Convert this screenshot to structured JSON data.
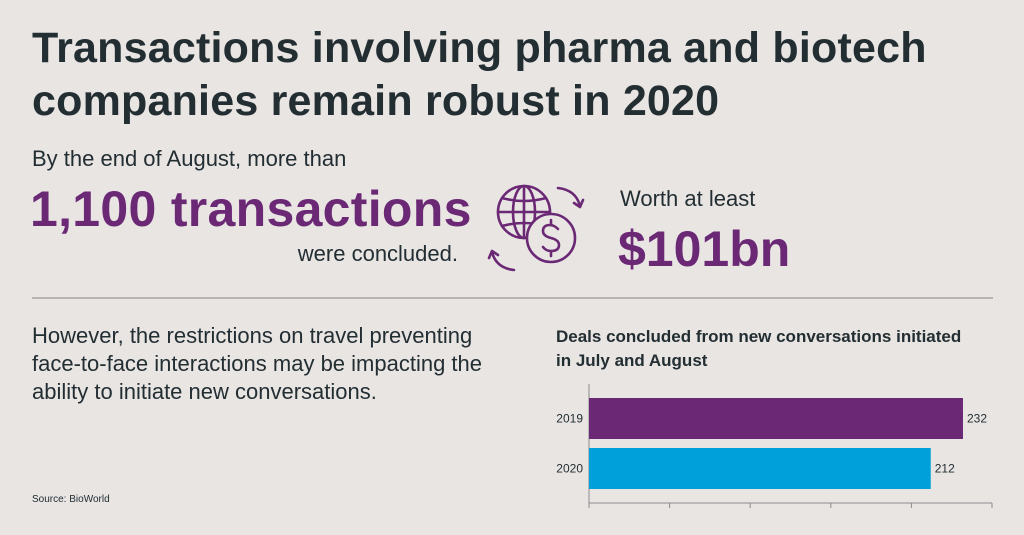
{
  "title": "Transactions involving pharma and biotech companies remain robust in 2020",
  "stats": {
    "intro": "By the end of August, more than",
    "count": "1,100 transactions",
    "concluded": "were concluded.",
    "worth_label": "Worth at least",
    "worth_value": "$101bn",
    "icon": "globe-dollar-exchange-icon"
  },
  "body_text": "However, the restrictions on travel preventing face-to-face interactions may be impacting the ability to initiate new conversations.",
  "source": "Source: BioWorld",
  "colors": {
    "background": "#e8e5e3",
    "accent_purple": "#6b2875",
    "bar_2019": "#6b2875",
    "bar_2020": "#00a0db",
    "text": "#232e33"
  },
  "chart_data": {
    "type": "bar",
    "orientation": "horizontal",
    "title": "Deals concluded from new conversations initiated in July and August",
    "categories": [
      "2019",
      "2020"
    ],
    "values": [
      232,
      212
    ],
    "value_labels": [
      "232",
      "212"
    ],
    "bar_colors": [
      "#6b2875",
      "#00a0db"
    ],
    "xlim": [
      0,
      250
    ],
    "x_ticks": [
      0,
      50,
      100,
      150,
      200,
      250
    ],
    "xlabel": "",
    "ylabel": "",
    "grid": false,
    "legend": "none"
  }
}
